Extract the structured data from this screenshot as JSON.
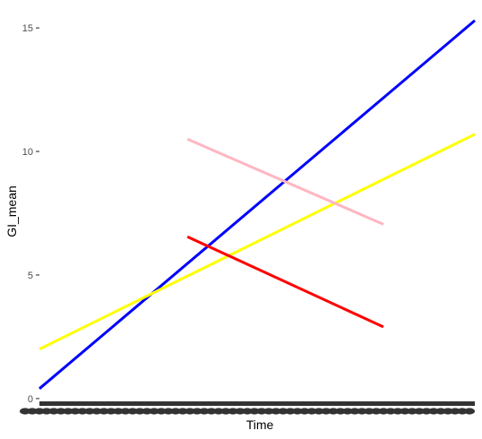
{
  "chart_data": {
    "type": "line",
    "xlabel": "Time",
    "ylabel": "GI_mean",
    "xlim": [
      0,
      1
    ],
    "ylim": [
      -0.15,
      15.55
    ],
    "y_ticks": [
      0,
      5,
      10,
      15
    ],
    "grid": false,
    "legend": "none",
    "x_tick_labels": "overplotted, unreadable",
    "series": [
      {
        "color": "#0000ff",
        "x": [
          0.0,
          1.0
        ],
        "values": [
          0.4,
          15.3
        ]
      },
      {
        "color": "#ffff00",
        "x": [
          0.0,
          1.0
        ],
        "values": [
          2.0,
          10.7
        ]
      },
      {
        "color": "#ffb6c1",
        "x": [
          0.34,
          0.79
        ],
        "values": [
          10.5,
          7.05
        ]
      },
      {
        "color": "#ff0000",
        "x": [
          0.34,
          0.79
        ],
        "values": [
          6.55,
          2.9
        ]
      }
    ]
  }
}
